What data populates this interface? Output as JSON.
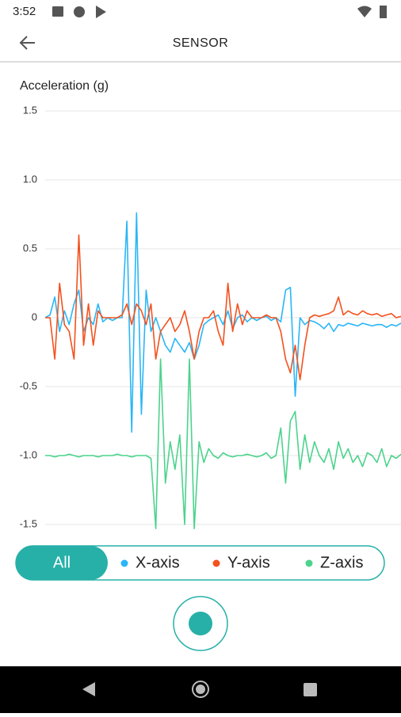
{
  "status_bar": {
    "time": "3:52"
  },
  "app_bar": {
    "title": "SENSOR"
  },
  "chart_data": {
    "type": "line",
    "y_label": "Acceleration (g)",
    "ylim": [
      -1.5,
      1.5
    ],
    "yticks": [
      1.5,
      {
        "value": 1,
        "label": "1.0"
      },
      0.5,
      0,
      -0.5,
      {
        "value": -1,
        "label": "-1.0"
      },
      -1.5
    ],
    "grid": true,
    "series": [
      {
        "name": "X-axis",
        "color": "#29b6f6",
        "values": [
          0,
          0.02,
          0.15,
          -0.1,
          0.05,
          -0.05,
          0.1,
          0.2,
          -0.1,
          0,
          -0.05,
          0.1,
          -0.03,
          0,
          -0.02,
          0,
          0,
          0.7,
          -0.83,
          0.76,
          -0.7,
          0.2,
          -0.1,
          0,
          -0.1,
          -0.2,
          -0.25,
          -0.15,
          -0.2,
          -0.25,
          -0.18,
          -0.3,
          -0.2,
          -0.05,
          -0.02,
          0,
          0.02,
          -0.05,
          0.05,
          -0.08,
          0,
          0.02,
          -0.03,
          0,
          -0.02,
          0,
          0.01,
          -0.02,
          0,
          -0.03,
          0.2,
          0.22,
          -0.57,
          0,
          -0.05,
          -0.02,
          -0.03,
          -0.05,
          -0.08,
          -0.04,
          -0.1,
          -0.05,
          -0.06,
          -0.04,
          -0.05,
          -0.06,
          -0.04,
          -0.05,
          -0.06,
          -0.05,
          -0.05,
          -0.07,
          -0.05,
          -0.06,
          -0.04
        ]
      },
      {
        "name": "Y-axis",
        "color": "#f4511e",
        "values": [
          0,
          0,
          -0.3,
          0.25,
          -0.05,
          -0.1,
          -0.3,
          0.6,
          -0.2,
          0.1,
          -0.2,
          0.05,
          0,
          0,
          0,
          0,
          0.02,
          0.1,
          -0.05,
          0.1,
          0.05,
          -0.05,
          0.1,
          -0.3,
          -0.1,
          -0.05,
          0,
          -0.1,
          -0.05,
          0.05,
          -0.1,
          -0.3,
          -0.1,
          0,
          0,
          0.05,
          -0.1,
          -0.2,
          0.25,
          -0.1,
          0.1,
          -0.05,
          0.05,
          0,
          0,
          0,
          0.02,
          0,
          0,
          -0.1,
          -0.3,
          -0.4,
          -0.2,
          -0.45,
          -0.2,
          0,
          0.02,
          0.01,
          0.02,
          0.03,
          0.05,
          0.15,
          0.02,
          0.05,
          0.03,
          0.02,
          0.05,
          0.03,
          0.02,
          0.03,
          0.01,
          0.02,
          0.03,
          0,
          0.01
        ]
      },
      {
        "name": "Z-axis",
        "color": "#4cd38c",
        "values": [
          -1,
          -1,
          -1.01,
          -1,
          -1,
          -0.99,
          -1,
          -1.01,
          -1,
          -1,
          -1,
          -1.01,
          -1,
          -1,
          -1,
          -0.99,
          -1,
          -1,
          -1.01,
          -1,
          -1,
          -1,
          -1.02,
          -1.53,
          -0.3,
          -1.2,
          -0.9,
          -1.1,
          -0.85,
          -1.5,
          -0.3,
          -1.53,
          -0.9,
          -1.05,
          -0.95,
          -1,
          -1.02,
          -0.98,
          -1,
          -1.01,
          -1,
          -1,
          -0.99,
          -1,
          -1.01,
          -1,
          -0.98,
          -1.02,
          -1,
          -0.8,
          -1.2,
          -0.75,
          -0.68,
          -1.1,
          -0.85,
          -1.05,
          -0.9,
          -1,
          -1.05,
          -0.95,
          -1.1,
          -0.9,
          -1.02,
          -0.95,
          -1.05,
          -1,
          -1.08,
          -0.98,
          -1,
          -1.05,
          -0.95,
          -1.08,
          -1,
          -1.02,
          -0.99
        ]
      }
    ]
  },
  "filter": {
    "all": "All"
  }
}
